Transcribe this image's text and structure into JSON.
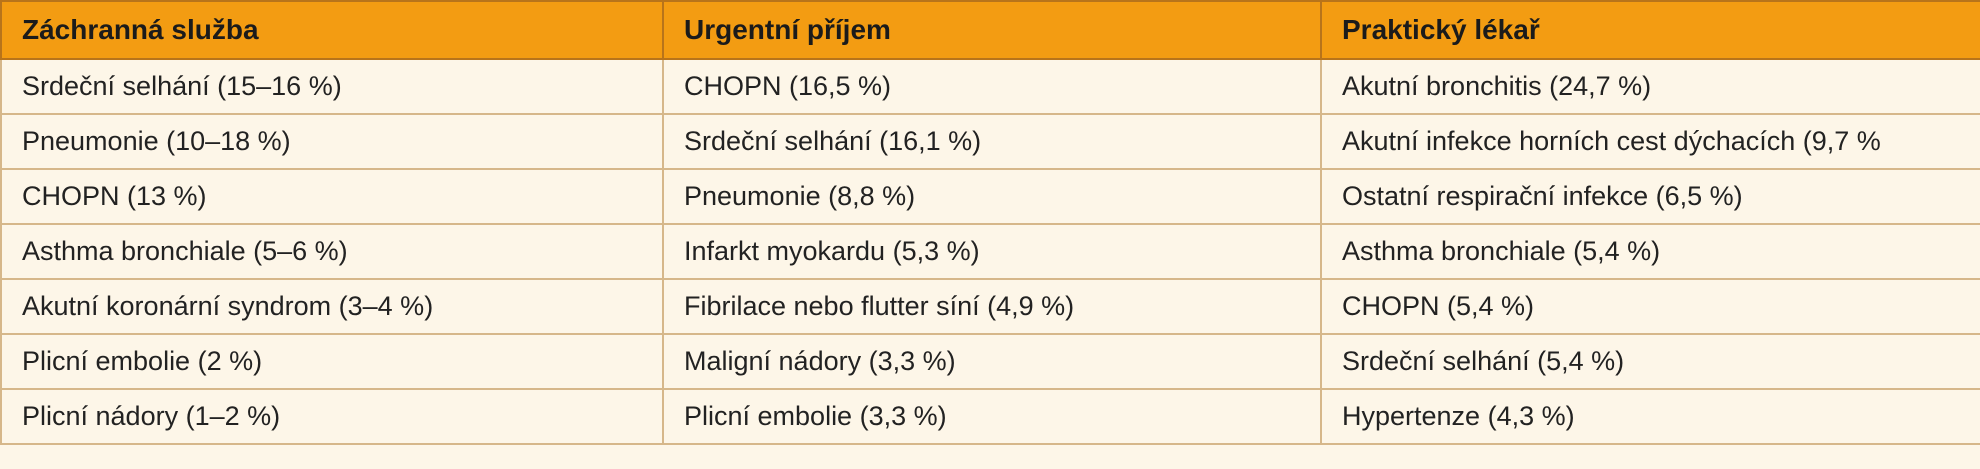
{
  "table": {
    "headers": [
      "Záchranná služba",
      "Urgentní příjem",
      "Praktický lékař"
    ],
    "rows": [
      [
        "Srdeční selhání (15–16 %)",
        "CHOPN (16,5 %)",
        "Akutní bronchitis (24,7 %)"
      ],
      [
        "Pneumonie (10–18 %)",
        "Srdeční selhání (16,1 %)",
        "Akutní infekce horních cest dýchacích (9,7 %"
      ],
      [
        "CHOPN (13 %)",
        "Pneumonie (8,8 %)",
        "Ostatní respirační infekce (6,5 %)"
      ],
      [
        "Asthma bronchiale (5–6 %)",
        "Infarkt myokardu (5,3 %)",
        "Asthma bronchiale (5,4 %)"
      ],
      [
        "Akutní koronární syndrom (3–4 %)",
        "Fibrilace nebo flutter síní (4,9 %)",
        "CHOPN (5,4 %)"
      ],
      [
        "Plicní embolie (2 %)",
        "Maligní nádory (3,3 %)",
        "Srdeční selhání (5,4 %)"
      ],
      [
        "Plicní nádory (1–2 %)",
        "Plicní embolie (3,3 %)",
        "Hypertenze (4,3 %)"
      ]
    ]
  },
  "colors": {
    "header_bg": "#f39c12",
    "cell_bg": "#fdf6e8",
    "border": "#d6b78a"
  }
}
